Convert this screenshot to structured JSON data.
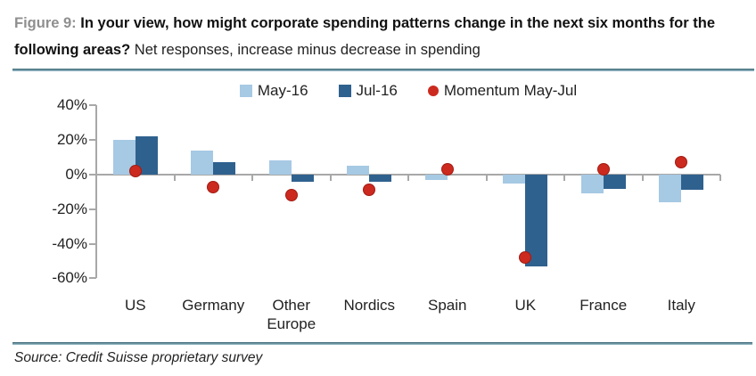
{
  "header": {
    "figure_label": "Figure 9:",
    "question_bold": "In your view, how might corporate spending patterns change in the next six months for the following areas?",
    "subtitle": "Net responses, increase minus decrease in spending"
  },
  "legend": {
    "may": "May-16",
    "jul": "Jul-16",
    "momentum": "Momentum May-Jul"
  },
  "source": {
    "text": "Source: Credit Suisse proprietary survey"
  },
  "colors": {
    "may16": "#a6c9e4",
    "jul16": "#2f618e",
    "momentum": "#cc2a1f",
    "axis": "#a8a8a8"
  },
  "chart_data": {
    "type": "bar",
    "categories": [
      "US",
      "Germany",
      "Other Europe",
      "Nordics",
      "Spain",
      "UK",
      "France",
      "Italy"
    ],
    "series": [
      {
        "name": "May-16",
        "type": "bar",
        "values": [
          20,
          14,
          8,
          5,
          -3,
          -5,
          -11,
          -16
        ]
      },
      {
        "name": "Jul-16",
        "type": "bar",
        "values": [
          22,
          7,
          -4,
          -4,
          0,
          -53,
          -8,
          -9
        ]
      },
      {
        "name": "Momentum May-Jul",
        "type": "scatter",
        "values": [
          2,
          -7,
          -12,
          -9,
          3,
          -48,
          3,
          7
        ]
      }
    ],
    "title": "In your view, how might corporate spending patterns change in the next six months for the following areas? Net responses, increase minus decrease in spending",
    "xlabel": "",
    "ylabel": "",
    "ylim": [
      -60,
      40
    ],
    "y_tick_values": [
      40,
      20,
      0,
      -20,
      -40,
      -60
    ],
    "y_tick_labels": [
      "40%",
      "20%",
      "0%",
      "-20%",
      "-40%",
      "-60%"
    ],
    "grid": false,
    "legend_position": "top"
  }
}
